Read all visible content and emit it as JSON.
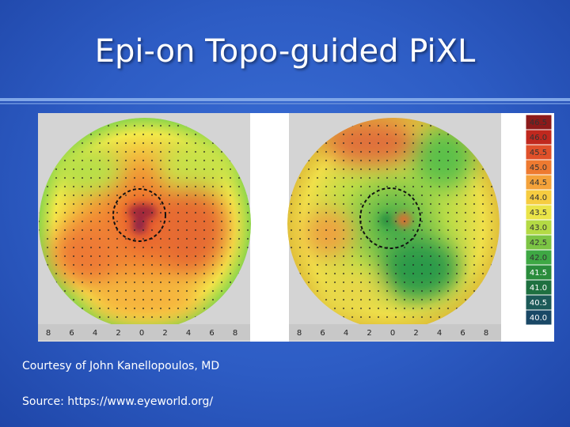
{
  "title": "Epi-on Topo-guided PiXL",
  "figure": {
    "left_axis": [
      "8",
      "6",
      "4",
      "2",
      "0",
      "2",
      "4",
      "6",
      "8"
    ],
    "right_axis": [
      "8",
      "6",
      "4",
      "2",
      "0",
      "2",
      "4",
      "6",
      "8"
    ],
    "scale": [
      "46.5",
      "46.0",
      "45.5",
      "45.0",
      "44.5",
      "44.0",
      "43.5",
      "43.0",
      "42.5",
      "42.0",
      "41.5",
      "41.0",
      "40.5",
      "40.0"
    ]
  },
  "captions": [
    "Courtesy of John Kanellopoulos, MD",
    "Source: https://www.eyeworld.org/"
  ]
}
